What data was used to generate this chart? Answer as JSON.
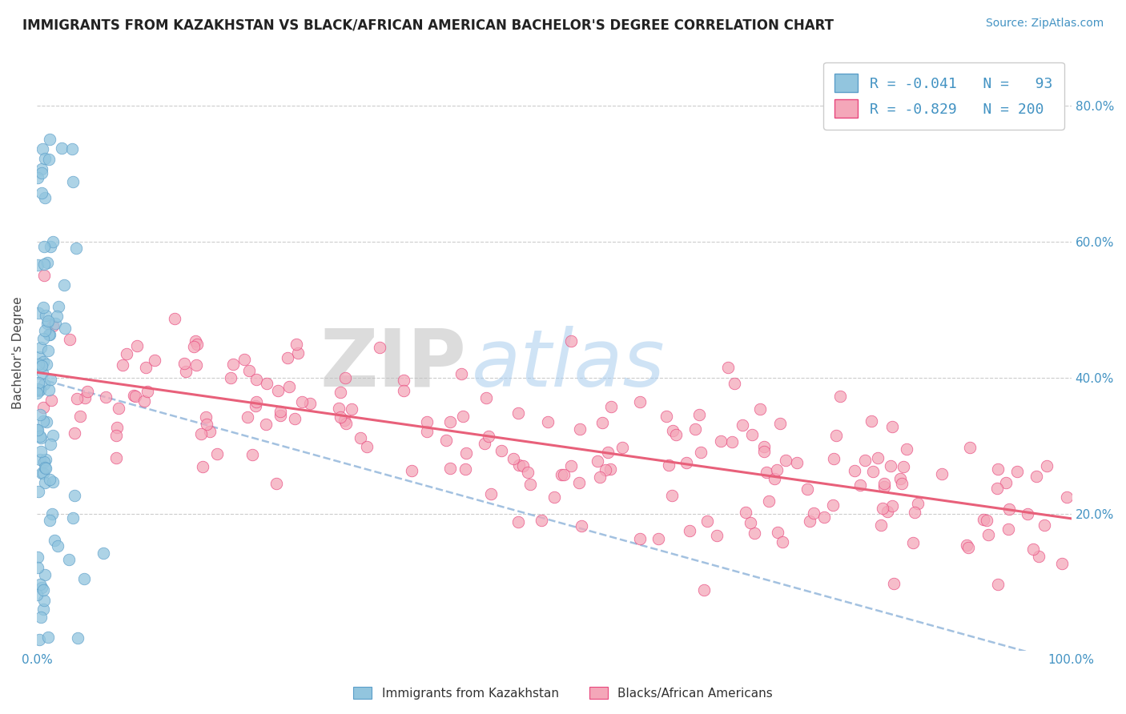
{
  "title": "IMMIGRANTS FROM KAZAKHSTAN VS BLACK/AFRICAN AMERICAN BACHELOR'S DEGREE CORRELATION CHART",
  "source": "Source: ZipAtlas.com",
  "ylabel": "Bachelor's Degree",
  "y_ticks_right": [
    "20.0%",
    "40.0%",
    "60.0%",
    "80.0%"
  ],
  "y_tick_vals": [
    0.2,
    0.4,
    0.6,
    0.8
  ],
  "color_blue": "#92C5DE",
  "color_blue_edge": "#5B9EC9",
  "color_pink": "#F4A7B9",
  "color_pink_edge": "#E8467C",
  "color_trendline_blue": "#99BBDD",
  "color_trendline_pink": "#E8607A",
  "watermark_zip": "ZIP",
  "watermark_atlas": "atlas",
  "watermark_color_zip": "#C8C8C8",
  "watermark_color_atlas": "#A8C8E8",
  "background_color": "#FFFFFF",
  "xlim": [
    0.0,
    1.0
  ],
  "ylim": [
    0.0,
    0.875
  ],
  "R_blue": -0.041,
  "N_blue": 93,
  "R_pink": -0.829,
  "N_pink": 200,
  "seed_blue": 12,
  "seed_pink": 99
}
